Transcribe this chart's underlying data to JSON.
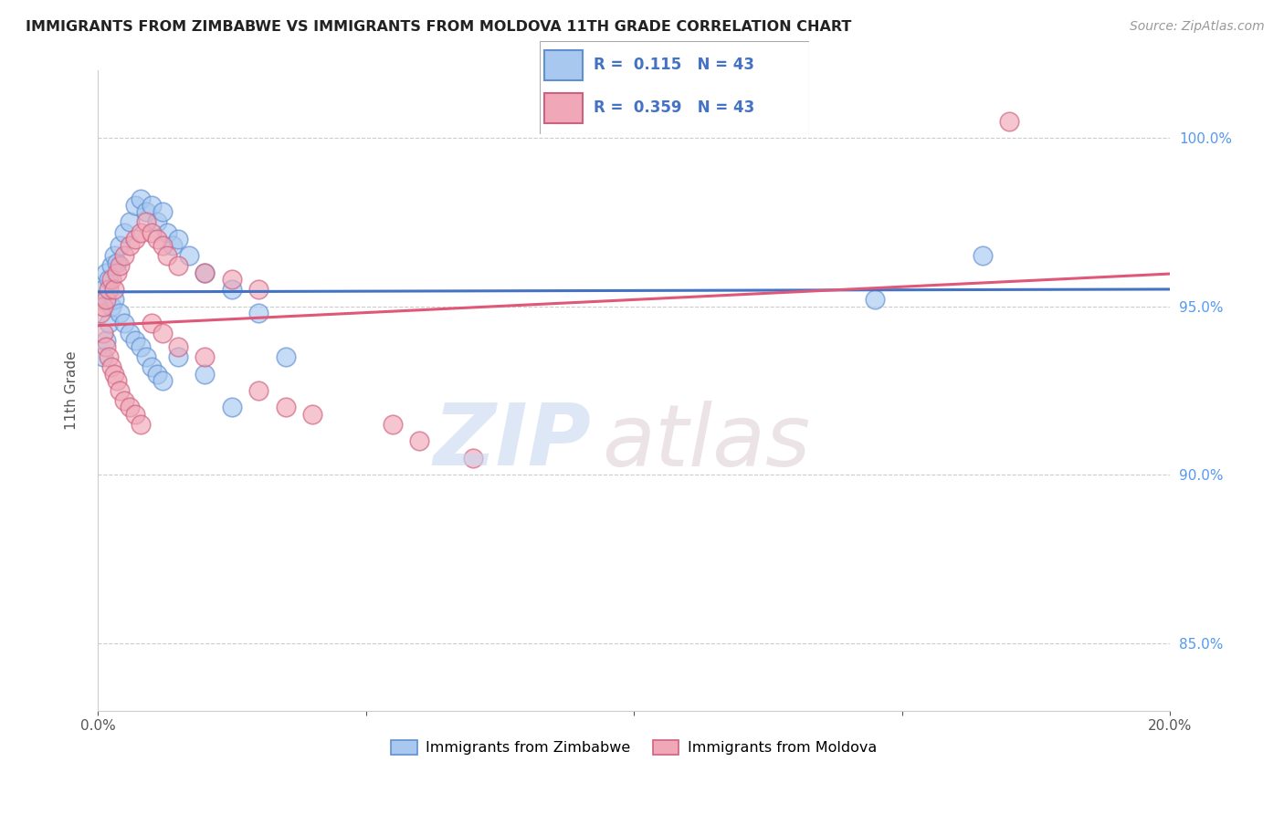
{
  "title": "IMMIGRANTS FROM ZIMBABWE VS IMMIGRANTS FROM MOLDOVA 11TH GRADE CORRELATION CHART",
  "source": "Source: ZipAtlas.com",
  "ylabel": "11th Grade",
  "zimbabwe_R": 0.115,
  "moldova_R": 0.359,
  "N": 43,
  "zimbabwe_color": "#a8c8f0",
  "moldova_color": "#f0a8b8",
  "zimbabwe_edge_color": "#6090d0",
  "moldova_edge_color": "#d06080",
  "zimbabwe_line_color": "#4472c4",
  "moldova_line_color": "#e05878",
  "legend_color": "#4472c4",
  "xlim": [
    0.0,
    20.0
  ],
  "ylim": [
    83.0,
    102.0
  ],
  "y_ticks": [
    85.0,
    90.0,
    95.0,
    100.0
  ],
  "x_ticks": [
    0,
    5,
    10,
    15,
    20
  ],
  "zimbabwe_x": [
    0.05,
    0.1,
    0.15,
    0.2,
    0.25,
    0.3,
    0.35,
    0.4,
    0.5,
    0.6,
    0.7,
    0.8,
    0.9,
    1.0,
    1.1,
    1.2,
    1.3,
    1.4,
    1.5,
    1.7,
    2.0,
    2.5,
    3.0,
    3.5,
    0.1,
    0.15,
    0.2,
    0.25,
    0.3,
    0.4,
    0.5,
    0.6,
    0.7,
    0.8,
    0.9,
    1.0,
    1.1,
    1.2,
    1.5,
    2.0,
    2.5,
    14.5,
    16.5
  ],
  "zimbabwe_y": [
    95.2,
    95.5,
    96.0,
    95.8,
    96.2,
    96.5,
    96.3,
    96.8,
    97.2,
    97.5,
    98.0,
    98.2,
    97.8,
    98.0,
    97.5,
    97.8,
    97.2,
    96.8,
    97.0,
    96.5,
    96.0,
    95.5,
    94.8,
    93.5,
    93.5,
    94.0,
    94.5,
    95.0,
    95.2,
    94.8,
    94.5,
    94.2,
    94.0,
    93.8,
    93.5,
    93.2,
    93.0,
    92.8,
    93.5,
    93.0,
    92.0,
    95.2,
    96.5
  ],
  "moldova_x": [
    0.05,
    0.1,
    0.15,
    0.2,
    0.25,
    0.3,
    0.35,
    0.4,
    0.5,
    0.6,
    0.7,
    0.8,
    0.9,
    1.0,
    1.1,
    1.2,
    1.3,
    1.5,
    2.0,
    2.5,
    3.0,
    0.1,
    0.15,
    0.2,
    0.25,
    0.3,
    0.35,
    0.4,
    0.5,
    0.6,
    0.7,
    0.8,
    1.0,
    1.2,
    1.5,
    2.0,
    3.0,
    3.5,
    4.0,
    5.5,
    6.0,
    7.0,
    17.0
  ],
  "moldova_y": [
    94.8,
    95.0,
    95.2,
    95.5,
    95.8,
    95.5,
    96.0,
    96.2,
    96.5,
    96.8,
    97.0,
    97.2,
    97.5,
    97.2,
    97.0,
    96.8,
    96.5,
    96.2,
    96.0,
    95.8,
    95.5,
    94.2,
    93.8,
    93.5,
    93.2,
    93.0,
    92.8,
    92.5,
    92.2,
    92.0,
    91.8,
    91.5,
    94.5,
    94.2,
    93.8,
    93.5,
    92.5,
    92.0,
    91.8,
    91.5,
    91.0,
    90.5,
    100.5
  ],
  "watermark_zip_color": "#c8d8f0",
  "watermark_atlas_color": "#d8c8d0"
}
